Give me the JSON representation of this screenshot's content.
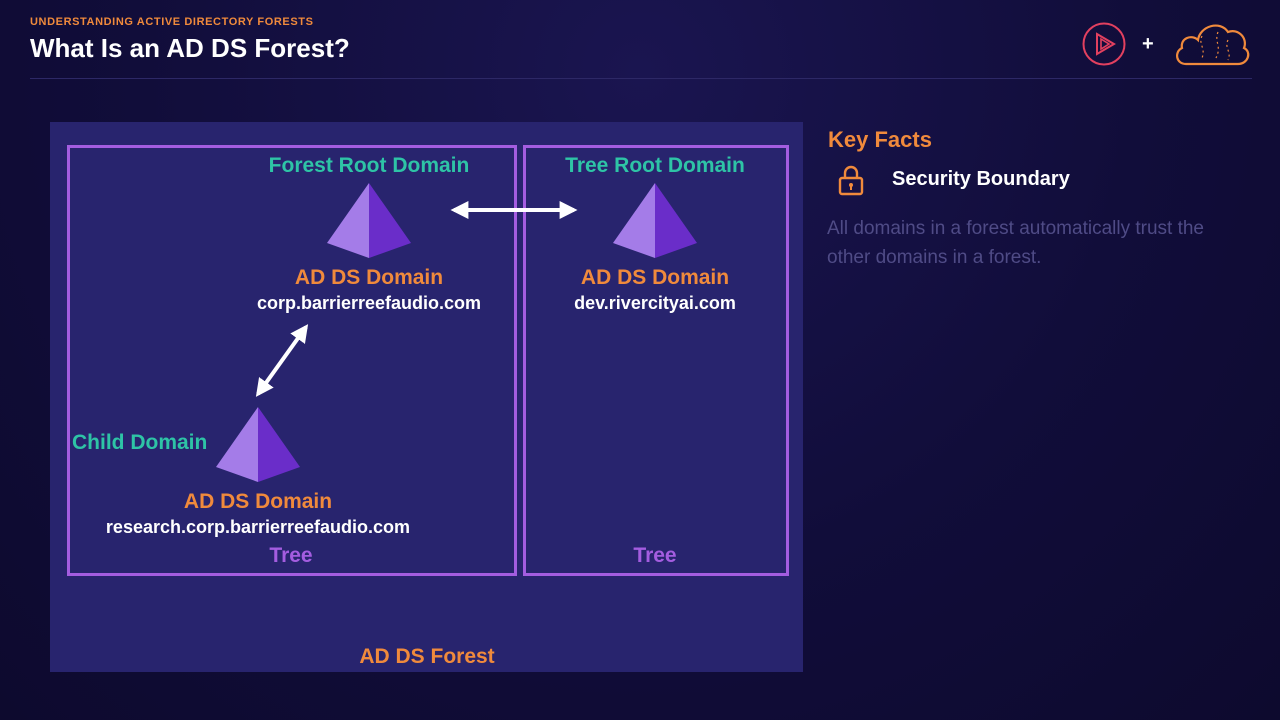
{
  "header": {
    "eyebrow": "UNDERSTANDING ACTIVE DIRECTORY FORESTS",
    "title": "What Is an AD DS Forest?"
  },
  "logos": {
    "play": "play-logo-icon",
    "plus": "+",
    "cloud": "cloud-logo-icon"
  },
  "diagram": {
    "forest_label": "AD DS Forest",
    "trees": [
      {
        "label": "Tree"
      },
      {
        "label": "Tree"
      }
    ],
    "domains": [
      {
        "role": "Forest Root Domain",
        "type": "AD DS Domain",
        "name": "corp.barrierreefaudio.com"
      },
      {
        "role": "Tree Root Domain",
        "type": "AD DS Domain",
        "name": "dev.rivercityai.com"
      },
      {
        "role": "Child Domain",
        "type": "AD DS Domain",
        "name": "research.corp.barrierreefaudio.com"
      }
    ],
    "colors": {
      "role": "#2ec4a6",
      "type": "#f08a3c",
      "tree": "#a45de0",
      "panel": "#28246e"
    }
  },
  "key_facts": {
    "title": "Key Facts",
    "icon": "lock-icon",
    "heading": "Security Boundary",
    "body": "All domains in a forest automatically trust the other domains in a forest."
  }
}
